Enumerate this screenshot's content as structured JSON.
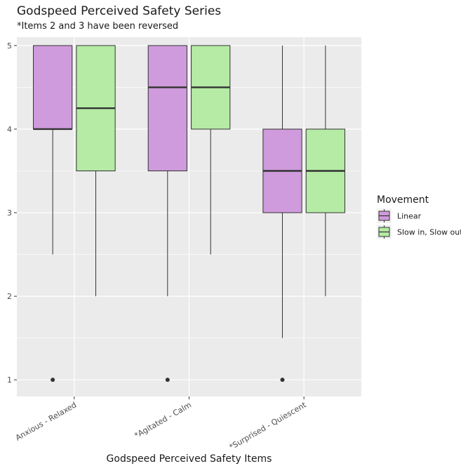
{
  "chart_data": {
    "type": "boxplot",
    "title": "Godspeed Perceived Safety Series",
    "subtitle": "*Items 2 and 3 have been reversed",
    "xlabel": "Godspeed Perceived Safety Items",
    "ylabel": "",
    "ylim": [
      0.8,
      5.1
    ],
    "yticks": [
      1,
      2,
      3,
      4,
      5
    ],
    "grid": true,
    "legend": {
      "title": "Movement",
      "placement": "right"
    },
    "categories": [
      "Anxious - Relaxed",
      "*Agitated - Calm",
      "*Surprised - Quiescent"
    ],
    "series": [
      {
        "name": "Linear",
        "color": "#cf9bdc",
        "boxes": [
          {
            "min": 2.5,
            "q1": 4,
            "median": 4,
            "q3": 5,
            "max": 5,
            "outliers": [
              1
            ]
          },
          {
            "min": 2,
            "q1": 3.5,
            "median": 4.5,
            "q3": 5,
            "max": 5,
            "outliers": [
              1
            ]
          },
          {
            "min": 1.5,
            "q1": 3,
            "median": 3.5,
            "q3": 4,
            "max": 5,
            "outliers": [
              1
            ]
          }
        ]
      },
      {
        "name": "Slow in, Slow out",
        "color": "#b5eba5",
        "boxes": [
          {
            "min": 2,
            "q1": 3.5,
            "median": 4.25,
            "q3": 5,
            "max": 5,
            "outliers": []
          },
          {
            "min": 2.5,
            "q1": 4,
            "median": 4.5,
            "q3": 5,
            "max": 5,
            "outliers": []
          },
          {
            "min": 2,
            "q1": 3,
            "median": 3.5,
            "q3": 4,
            "max": 5,
            "outliers": []
          }
        ]
      }
    ],
    "colors": {
      "panel": "#ebebeb",
      "grid": "#ffffff",
      "stroke": "#333333"
    }
  }
}
